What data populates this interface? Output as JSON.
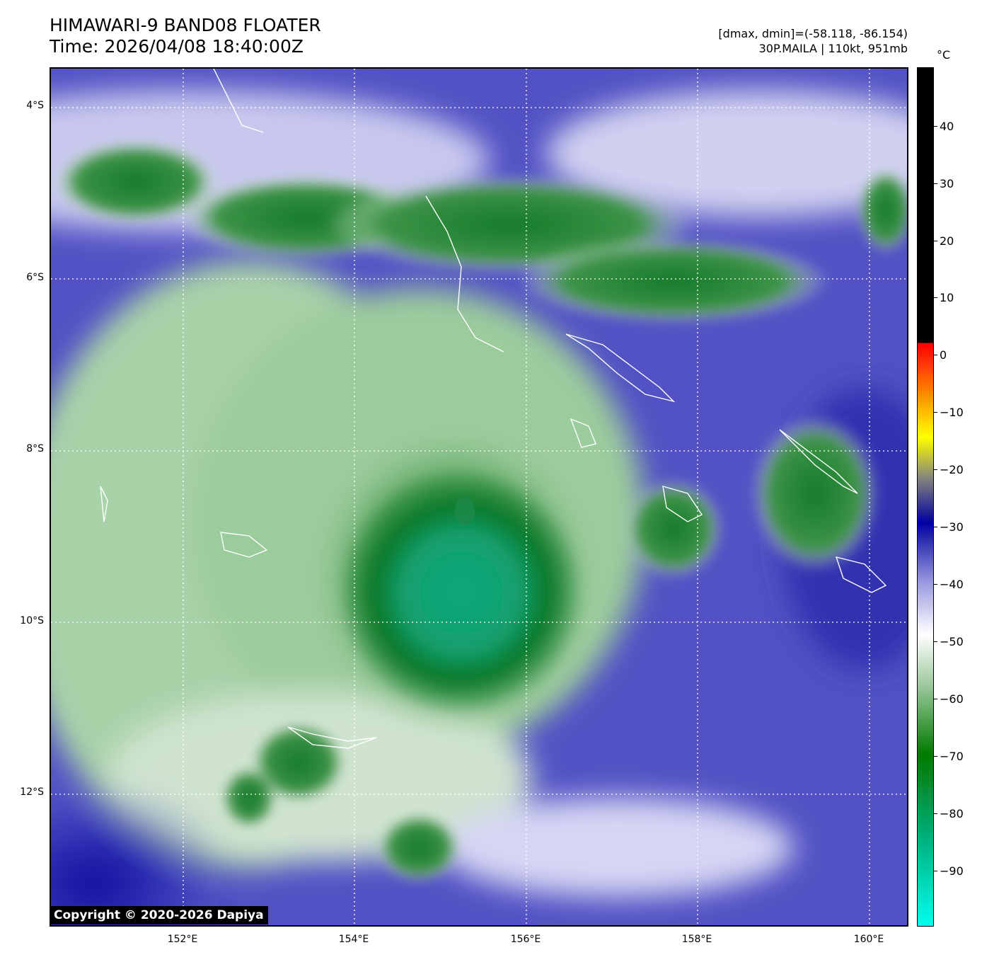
{
  "header": {
    "title": "HIMAWARI-9 BAND08 FLOATER",
    "time": "Time: 2026/04/08 18:40:00Z",
    "range": "[dmax, dmin]=(-58.118, -86.154)",
    "storm": "30P.MAILA | 110kt, 951mb"
  },
  "axes": {
    "lat_labels": [
      "4°S",
      "6°S",
      "8°S",
      "10°S",
      "12°S"
    ],
    "lon_labels": [
      "152°E",
      "154°E",
      "156°E",
      "158°E",
      "160°E"
    ]
  },
  "colorbar": {
    "unit": "°C",
    "labels": [
      "40",
      "30",
      "20",
      "10",
      "0",
      "−10",
      "−20",
      "−30",
      "−40",
      "−50",
      "−60",
      "−70",
      "−80",
      "−90"
    ],
    "colors": {
      "cyan": "#00ffee",
      "teal": "#00b080",
      "dark_green": "#007a00",
      "light_green": "#9cc89c",
      "white": "#ffffff",
      "lavender": "#9a9ae0",
      "blue": "#0000a0",
      "yellow": "#ffff00",
      "red": "#ff0000",
      "black": "#000000"
    }
  },
  "copyright": "Copyright © 2020-2026 Dapiya"
}
